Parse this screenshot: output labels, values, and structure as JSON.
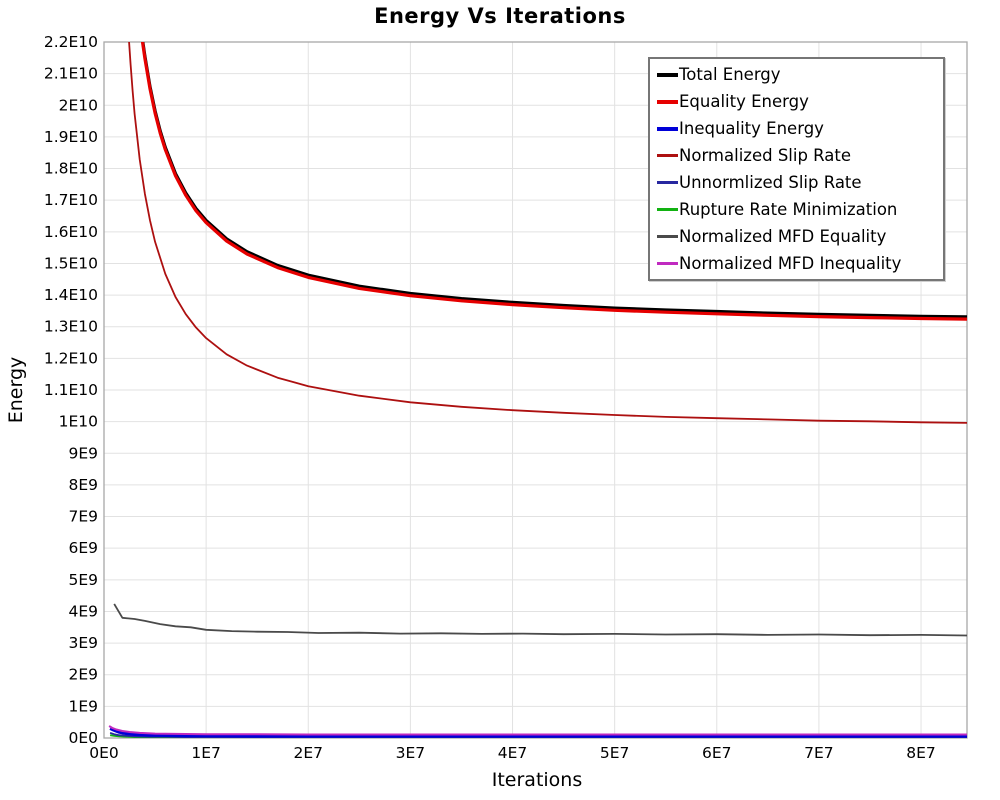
{
  "chart_data": {
    "type": "line",
    "title": "Energy Vs Iterations",
    "xlabel": "Iterations",
    "ylabel": "Energy",
    "x_axis": {
      "min": 0,
      "max": 84500000,
      "tick_step": 10000000,
      "tick_labels": [
        "0E0",
        "1E7",
        "2E7",
        "3E7",
        "4E7",
        "5E7",
        "6E7",
        "7E7",
        "8E7"
      ]
    },
    "y_axis": {
      "min": 0,
      "max": 22000000000,
      "tick_step": 1000000000,
      "tick_labels": [
        "0E0",
        "1E9",
        "2E9",
        "3E9",
        "4E9",
        "5E9",
        "6E9",
        "7E9",
        "8E9",
        "9E9",
        "1E10",
        "1.1E10",
        "1.2E10",
        "1.3E10",
        "1.4E10",
        "1.5E10",
        "1.6E10",
        "1.7E10",
        "1.8E10",
        "1.9E10",
        "2E10",
        "2.1E10",
        "2.2E10"
      ]
    },
    "grid": true,
    "legend_position": "top-right",
    "units_note": "series x values in 1e7 iterations, y values in 1e9 energy",
    "series": [
      {
        "name": "Total Energy",
        "color": "#000000",
        "stroke_width": 3.2,
        "legend_thickness": 4,
        "x_e7": [
          0.32,
          0.34,
          0.36,
          0.38,
          0.4,
          0.45,
          0.5,
          0.55,
          0.6,
          0.7,
          0.8,
          0.9,
          1.0,
          1.2,
          1.4,
          1.7,
          2.0,
          2.5,
          3.0,
          3.5,
          4.0,
          4.5,
          5.0,
          5.5,
          6.0,
          6.5,
          7.0,
          7.5,
          8.0,
          8.45
        ],
        "y_e9": [
          23.71,
          23.08,
          22.51,
          22.01,
          21.55,
          20.59,
          19.82,
          19.19,
          18.67,
          17.84,
          17.23,
          16.74,
          16.36,
          15.78,
          15.37,
          14.94,
          14.63,
          14.28,
          14.05,
          13.89,
          13.77,
          13.67,
          13.59,
          13.53,
          13.48,
          13.43,
          13.39,
          13.36,
          13.33,
          13.31
        ]
      },
      {
        "name": "Equality Energy",
        "color": "#e60000",
        "stroke_width": 3.2,
        "legend_thickness": 4,
        "x_e7": [
          0.32,
          0.34,
          0.36,
          0.38,
          0.4,
          0.45,
          0.5,
          0.55,
          0.6,
          0.7,
          0.8,
          0.9,
          1.0,
          1.2,
          1.4,
          1.7,
          2.0,
          2.5,
          3.0,
          3.5,
          4.0,
          4.5,
          5.0,
          5.5,
          6.0,
          6.5,
          7.0,
          7.5,
          8.0,
          8.45
        ],
        "y_e9": [
          23.64,
          23.01,
          22.44,
          21.94,
          21.48,
          20.52,
          19.75,
          19.12,
          18.6,
          17.77,
          17.16,
          16.67,
          16.29,
          15.71,
          15.3,
          14.87,
          14.56,
          14.21,
          13.98,
          13.82,
          13.7,
          13.6,
          13.52,
          13.46,
          13.41,
          13.36,
          13.32,
          13.29,
          13.26,
          13.24
        ]
      },
      {
        "name": "Inequality Energy",
        "color": "#0000d8",
        "stroke_width": 3.0,
        "legend_thickness": 4,
        "x_e7": [
          0.06,
          0.1,
          0.15,
          0.22,
          0.3,
          0.45,
          0.6,
          0.8,
          1.0,
          1.5,
          2.0,
          3.0,
          4.0,
          5.0,
          6.0,
          7.0,
          8.45
        ],
        "y_e9": [
          0.3,
          0.24,
          0.18,
          0.14,
          0.11,
          0.09,
          0.08,
          0.07,
          0.07,
          0.06,
          0.06,
          0.06,
          0.06,
          0.06,
          0.06,
          0.06,
          0.06
        ]
      },
      {
        "name": "Normalized Slip Rate",
        "color": "#ad1010",
        "stroke_width": 1.8,
        "legend_thickness": 2.5,
        "x_e7": [
          0.22,
          0.24,
          0.26,
          0.28,
          0.3,
          0.35,
          0.4,
          0.45,
          0.5,
          0.6,
          0.7,
          0.8,
          0.9,
          1.0,
          1.2,
          1.4,
          1.7,
          2.0,
          2.5,
          3.0,
          3.5,
          4.0,
          4.5,
          5.0,
          5.5,
          6.0,
          6.5,
          7.0,
          7.5,
          8.0,
          8.45
        ],
        "y_e9": [
          23.42,
          22.27,
          21.29,
          20.46,
          19.73,
          18.29,
          17.2,
          16.36,
          15.68,
          14.67,
          13.94,
          13.4,
          12.98,
          12.64,
          12.13,
          11.77,
          11.39,
          11.12,
          10.82,
          10.61,
          10.47,
          10.36,
          10.28,
          10.21,
          10.15,
          10.11,
          10.07,
          10.03,
          10.01,
          9.98,
          9.96
        ]
      },
      {
        "name": "Unnormlized Slip Rate",
        "color": "#2828a0",
        "stroke_width": 1.8,
        "legend_thickness": 2.5,
        "x_e7": [
          0.06,
          0.1,
          0.15,
          0.22,
          0.3,
          0.45,
          0.6,
          0.8,
          1.0,
          2.0,
          4.0,
          6.0,
          8.45
        ],
        "y_e9": [
          0.16,
          0.12,
          0.09,
          0.07,
          0.05,
          0.04,
          0.04,
          0.03,
          0.03,
          0.03,
          0.03,
          0.03,
          0.03
        ]
      },
      {
        "name": "Rupture Rate Minimization",
        "color": "#12b212",
        "stroke_width": 1.8,
        "legend_thickness": 2.5,
        "x_e7": [
          0.06,
          0.1,
          0.15,
          0.22,
          0.3,
          0.45,
          0.6,
          0.8,
          1.0,
          2.0,
          4.0,
          6.0,
          8.45
        ],
        "y_e9": [
          0.09,
          0.07,
          0.05,
          0.04,
          0.03,
          0.02,
          0.02,
          0.02,
          0.02,
          0.02,
          0.02,
          0.02,
          0.02
        ]
      },
      {
        "name": "Normalized MFD Equality",
        "color": "#4a4a4a",
        "stroke_width": 1.8,
        "legend_thickness": 2.5,
        "x_e7": [
          0.1,
          0.18,
          0.3,
          0.4,
          0.55,
          0.7,
          0.85,
          1.0,
          1.25,
          1.5,
          1.8,
          2.1,
          2.5,
          2.9,
          3.3,
          3.7,
          4.1,
          4.5,
          5.0,
          5.5,
          6.0,
          6.5,
          7.0,
          7.5,
          8.0,
          8.45
        ],
        "y_e9": [
          4.24,
          3.8,
          3.76,
          3.7,
          3.6,
          3.53,
          3.5,
          3.42,
          3.38,
          3.36,
          3.35,
          3.32,
          3.33,
          3.3,
          3.31,
          3.29,
          3.3,
          3.28,
          3.29,
          3.27,
          3.28,
          3.26,
          3.27,
          3.25,
          3.26,
          3.24
        ]
      },
      {
        "name": "Normalized MFD Inequality",
        "color": "#c02ac0",
        "stroke_width": 2.0,
        "legend_thickness": 2.5,
        "x_e7": [
          0.05,
          0.08,
          0.12,
          0.18,
          0.25,
          0.35,
          0.5,
          0.7,
          1.0,
          1.5,
          2.0,
          3.0,
          4.0,
          5.0,
          6.0,
          7.0,
          8.0,
          8.45
        ],
        "y_e9": [
          0.38,
          0.32,
          0.27,
          0.22,
          0.19,
          0.16,
          0.14,
          0.13,
          0.12,
          0.12,
          0.11,
          0.11,
          0.11,
          0.11,
          0.11,
          0.11,
          0.11,
          0.11
        ]
      }
    ],
    "style": {
      "grid_color": "#e2e2e2",
      "border_color": "#a8a8a8",
      "background": "#ffffff"
    }
  }
}
